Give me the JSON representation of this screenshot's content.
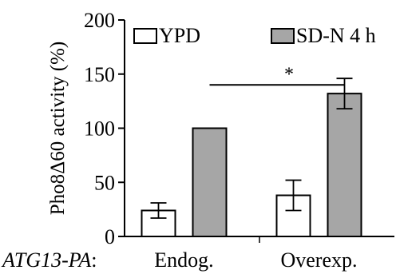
{
  "chart_data": {
    "type": "bar",
    "title": "",
    "ylabel": "Pho8Δ60 activity (%)",
    "xlabel": "",
    "ylim": [
      0,
      200
    ],
    "yticks": [
      0,
      50,
      100,
      150,
      200
    ],
    "row_label": "ATG13-PA",
    "row_label_suffix": ":",
    "categories": [
      "Endog.",
      "Overexp."
    ],
    "series": [
      {
        "name": "YPD",
        "color": "#ffffff",
        "values": [
          24,
          38
        ],
        "errors": [
          7,
          14
        ]
      },
      {
        "name": "SD-N 4 h",
        "color": "#a6a6a6",
        "values": [
          100,
          132
        ],
        "errors": [
          0,
          14
        ]
      }
    ],
    "legend_position": "top",
    "annotations": [
      {
        "label": "*",
        "between": [
          "Endog. SD-N 4 h",
          "Overexp. SD-N 4 h"
        ],
        "at_value": 140
      }
    ]
  }
}
